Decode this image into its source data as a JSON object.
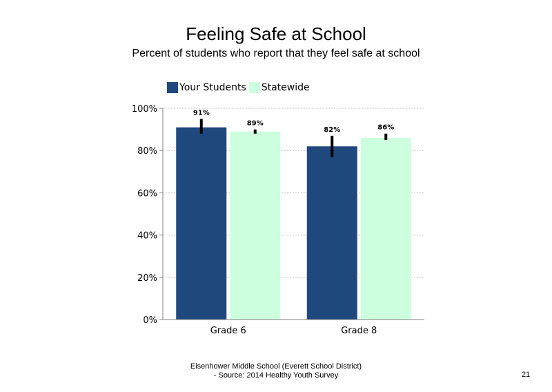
{
  "slide": {
    "footer_line1": "Eisenhower Middle School (Everett School District)",
    "footer_line2": "- Source: 2014 Healthy  Youth Survey",
    "page_number": "21"
  },
  "chart_data": {
    "type": "bar",
    "title": "Feeling Safe at School",
    "subtitle": "Percent of students  who report that they feel safe at school",
    "categories": [
      "Grade 6",
      "Grade 8"
    ],
    "series": [
      {
        "name": "Your Students",
        "values": [
          91,
          82
        ],
        "labels": [
          "91%",
          "82%"
        ],
        "error_low": [
          88,
          77
        ],
        "error_high": [
          95,
          87
        ],
        "color": "#1f497d"
      },
      {
        "name": "Statewide",
        "values": [
          89,
          86
        ],
        "labels": [
          "89%",
          "86%"
        ],
        "error_low": [
          88,
          85
        ],
        "error_high": [
          90,
          88
        ],
        "color": "#ccffdd"
      }
    ],
    "ylim": [
      0,
      100
    ],
    "yticks": [
      0,
      20,
      40,
      60,
      80,
      100
    ],
    "ytick_labels": [
      "0%",
      "20%",
      "40%",
      "60%",
      "80%",
      "100%"
    ],
    "xlabel": "",
    "ylabel": "",
    "grid": true,
    "legend_position": "top-left"
  }
}
